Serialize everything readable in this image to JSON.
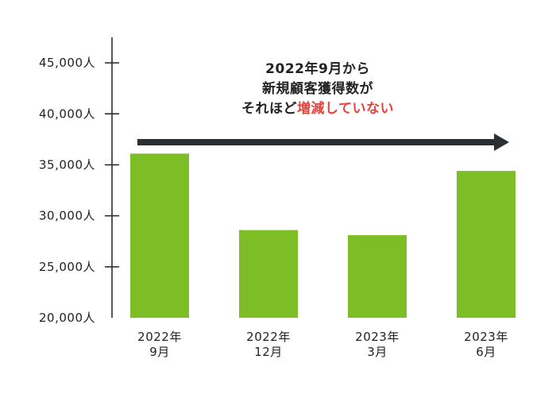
{
  "chart_data": {
    "type": "bar",
    "categories": [
      [
        "2022年",
        "9月"
      ],
      [
        "2022年",
        "12月"
      ],
      [
        "2023年",
        "3月"
      ],
      [
        "2023年",
        "6月"
      ]
    ],
    "values": [
      36100,
      28600,
      28100,
      34400
    ],
    "ylim": [
      20000,
      47500
    ],
    "yticks": [
      20000,
      25000,
      30000,
      35000,
      40000,
      45000
    ],
    "ytick_labels": [
      "20,000人",
      "25,000人",
      "30,000人",
      "35,000人",
      "40,000人",
      "45,000人"
    ],
    "grid": false,
    "bar_color": "#7dbe27",
    "annotation": {
      "line1": "2022年9月から",
      "line2": "新規顧客獲得数が",
      "line3_before": "それほど",
      "line3_highlight": "増減していない",
      "highlight_color": "#e8423a",
      "arrow": "right"
    }
  }
}
